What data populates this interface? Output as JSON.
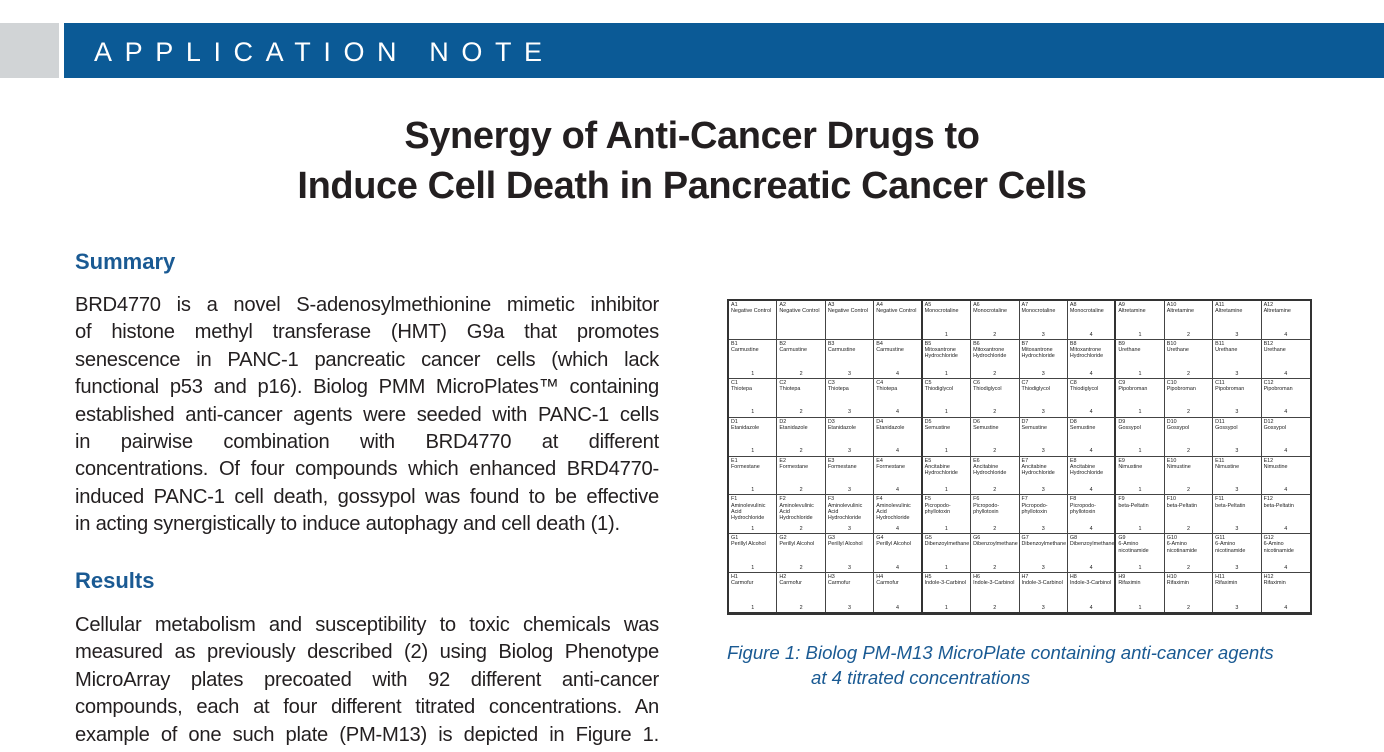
{
  "header": {
    "label": "APPLICATION NOTE",
    "colors": {
      "bar": "#0b5a96",
      "block": "#d1d4d6"
    }
  },
  "title": {
    "line1": "Synergy of Anti-Cancer Drugs to",
    "line2": "Induce Cell Death in Pancreatic Cancer Cells"
  },
  "summary": {
    "heading": "Summary",
    "lines": [
      "BRD4770 is a novel S-adenosylmethionine mimetic inhibitor",
      "of histone methyl transferase (HMT) G9a that promotes",
      "senescence in PANC-1 pancreatic cancer cells (which lack",
      "functional p53 and p16). Biolog PMM MicroPlates™ containing",
      "established anti-cancer agents were seeded with PANC-1 cells",
      "in pairwise combination with BRD4770 at different",
      "concentrations. Of four compounds which enhanced BRD4770-",
      "induced PANC-1 cell death, gossypol was found to be effective",
      "in acting synergistically to induce autophagy and cell death (1)."
    ]
  },
  "results": {
    "heading": "Results",
    "lines": [
      "Cellular metabolism and susceptibility to toxic chemicals was",
      "measured as previously described (2) using Biolog Phenotype",
      "MicroArray plates precoated with 92 different anti-cancer",
      "compounds, each at four different titrated concentrations. An",
      "example of one such plate (PM-M13) is depicted in Figure 1."
    ]
  },
  "figure": {
    "caption_line1": "Figure 1: Biolog PM-M13 MicroPlate containing anti-cancer agents",
    "caption_line2": "at 4 titrated concentrations",
    "plate": {
      "rows": [
        "A",
        "B",
        "C",
        "D",
        "E",
        "F",
        "G",
        "H"
      ],
      "compounds": [
        [
          "Negative Control",
          "Negative Control",
          "Negative Control",
          "Negative Control",
          "Monocrotaline",
          "Monocrotaline",
          "Monocrotaline",
          "Monocrotaline",
          "Altretamine",
          "Altretamine",
          "Altretamine",
          "Altretamine"
        ],
        [
          "Carmustine",
          "Carmustine",
          "Carmustine",
          "Carmustine",
          "Mitoxantrone\nHydrochloride",
          "Mitoxantrone\nHydrochloride",
          "Mitoxantrone\nHydrochloride",
          "Mitoxantrone\nHydrochloride",
          "Urethane",
          "Urethane",
          "Urethane",
          "Urethane"
        ],
        [
          "Thiotepa",
          "Thiotepa",
          "Thiotepa",
          "Thiotepa",
          "Thiodiglycol",
          "Thiodiglycol",
          "Thiodiglycol",
          "Thiodiglycol",
          "Pipobroman",
          "Pipobroman",
          "Pipobroman",
          "Pipobroman"
        ],
        [
          "Etanidazole",
          "Etanidazole",
          "Etanidazole",
          "Etanidazole",
          "Semustine",
          "Semustine",
          "Semustine",
          "Semustine",
          "Gossypol",
          "Gossypol",
          "Gossypol",
          "Gossypol"
        ],
        [
          "Formestane",
          "Formestane",
          "Formestane",
          "Formestane",
          "Ancitabine\nHydrochloride",
          "Ancitabine\nHydrochloride",
          "Ancitabine\nHydrochloride",
          "Ancitabine\nHydrochloride",
          "Nimustine",
          "Nimustine",
          "Nimustine",
          "Nimustine"
        ],
        [
          "Aminolevulinic\nAcid\nHydrochloride",
          "Aminolevulinic\nAcid\nHydrochloride",
          "Aminolevulinic\nAcid\nHydrochloride",
          "Aminolevulinic\nAcid\nHydrochloride",
          "Picropodo-\nphyllotoxin",
          "Picropodo-\nphyllotoxin",
          "Picropodo-\nphyllotoxin",
          "Picropodo-\nphyllotoxin",
          "beta-Peltatin",
          "beta-Peltatin",
          "beta-Peltatin",
          "beta-Peltatin"
        ],
        [
          "Perillyl Alcohol",
          "Perillyl Alcohol",
          "Perillyl Alcohol",
          "Perillyl Alcohol",
          "Dibenzoylmethane",
          "Dibenzoylmethane",
          "Dibenzoylmethane",
          "Dibenzoylmethane",
          "6-Amino\nnicotinamide",
          "6-Amino\nnicotinamide",
          "6-Amino\nnicotinamide",
          "6-Amino\nnicotinamide"
        ],
        [
          "Carmofur",
          "Carmofur",
          "Carmofur",
          "Carmofur",
          "Indole-3-Carbinol",
          "Indole-3-Carbinol",
          "Indole-3-Carbinol",
          "Indole-3-Carbinol",
          "Rifaximin",
          "Rifaximin",
          "Rifaximin",
          "Rifaximin"
        ]
      ],
      "concentrations": [
        "1",
        "2",
        "3",
        "4",
        "1",
        "2",
        "3",
        "4",
        "1",
        "2",
        "3",
        "4"
      ],
      "negative_control_row_has_concentration": false
    }
  }
}
